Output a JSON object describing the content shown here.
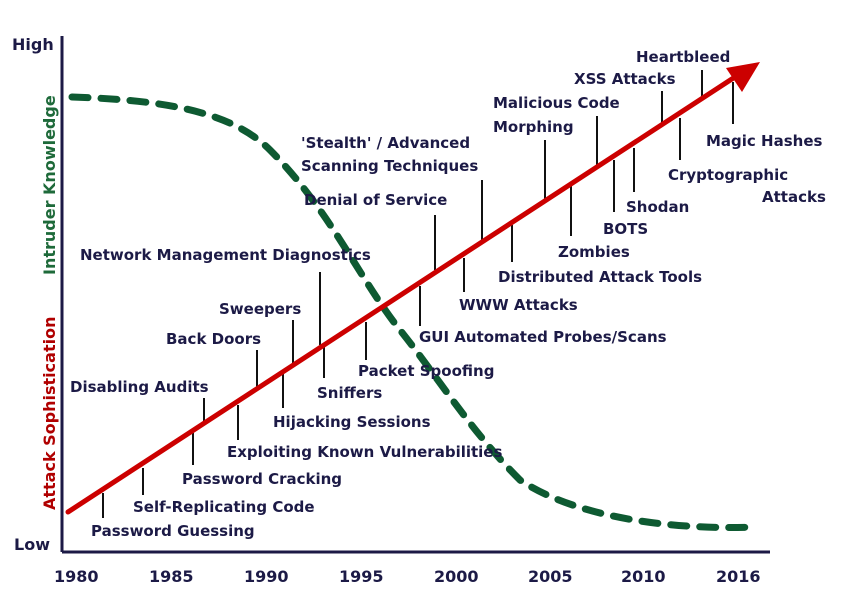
{
  "axis": {
    "y_high": "High",
    "y_low": "Low",
    "y_title_top": "Intruder Knowledge",
    "y_title_bottom": "Attack Sophistication",
    "x_ticks": [
      "1980",
      "1985",
      "1990",
      "1995",
      "2000",
      "2005",
      "2010",
      "2016"
    ]
  },
  "labels": {
    "password_guessing": "Password Guessing",
    "self_replicating_code": "Self-Replicating Code",
    "password_cracking": "Password Cracking",
    "disabling_audits": "Disabling Audits",
    "exploiting_known_vulnerabilities": "Exploiting Known Vulnerabilities",
    "back_doors": "Back Doors",
    "sweepers": "Sweepers",
    "hijacking_sessions": "Hijacking Sessions",
    "network_management_diagnostics": "Network Management Diagnostics",
    "sniffers": "Sniffers",
    "packet_spoofing": "Packet Spoofing",
    "gui_automated_probes": "GUI Automated Probes/Scans",
    "denial_of_service": "Denial of Service",
    "www_attacks": "WWW Attacks",
    "stealth_line1": "'Stealth' / Advanced",
    "stealth_line2": "Scanning Techniques",
    "distributed_attack_tools": "Distributed Attack Tools",
    "malicious_code_line1": "Malicious Code",
    "malicious_code_line2": "Morphing",
    "zombies": "Zombies",
    "xss_attacks": "XSS Attacks",
    "bots": "BOTS",
    "shodan": "Shodan",
    "heartbleed": "Heartbleed",
    "cryptographic_line1": "Cryptographic",
    "cryptographic_line2": "Attacks",
    "magic_hashes": "Magic Hashes"
  },
  "colors": {
    "attack_line": "#cc0000",
    "knowledge_curve": "#0e5a32",
    "text": "#1c1a46",
    "axis_title_top": "#1e6a3a",
    "axis_title_bottom": "#b00000"
  }
}
